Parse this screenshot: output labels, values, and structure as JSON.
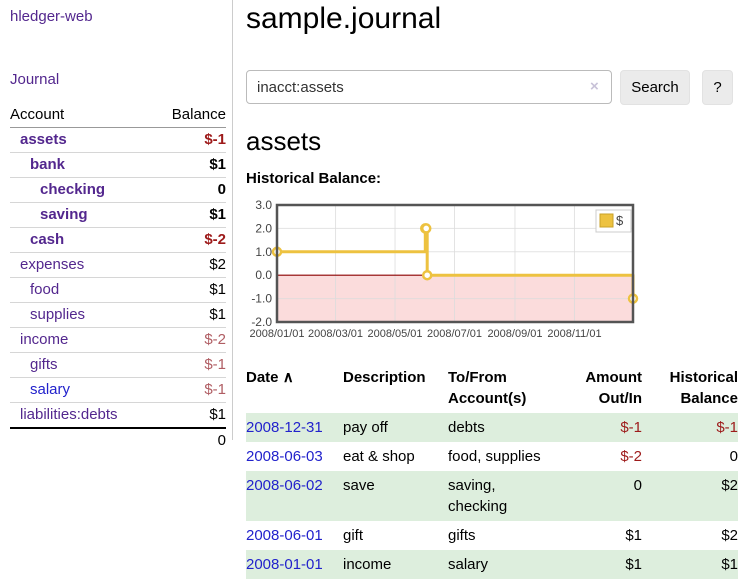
{
  "app": {
    "brand": "hledger-web"
  },
  "sidebar": {
    "nav": {
      "journal_label": "Journal"
    },
    "accounts": {
      "headers": {
        "account": "Account",
        "balance": "Balance"
      },
      "rows": [
        {
          "name": "assets",
          "balance": "$-1",
          "indent": 1,
          "bold": true,
          "neg": true,
          "muted": false,
          "blue": false
        },
        {
          "name": "bank",
          "balance": "$1",
          "indent": 2,
          "bold": true,
          "neg": false,
          "muted": false,
          "blue": false
        },
        {
          "name": "checking",
          "balance": "0",
          "indent": 3,
          "bold": true,
          "neg": false,
          "muted": false,
          "blue": false
        },
        {
          "name": "saving",
          "balance": "$1",
          "indent": 3,
          "bold": true,
          "neg": false,
          "muted": false,
          "blue": false
        },
        {
          "name": "cash",
          "balance": "$-2",
          "indent": 2,
          "bold": true,
          "neg": true,
          "muted": false,
          "blue": false
        },
        {
          "name": "expenses",
          "balance": "$2",
          "indent": 1,
          "bold": false,
          "neg": false,
          "muted": false,
          "blue": false
        },
        {
          "name": "food",
          "balance": "$1",
          "indent": 2,
          "bold": false,
          "neg": false,
          "muted": false,
          "blue": false
        },
        {
          "name": "supplies",
          "balance": "$1",
          "indent": 2,
          "bold": false,
          "neg": false,
          "muted": false,
          "blue": false
        },
        {
          "name": "income",
          "balance": "$-2",
          "indent": 1,
          "bold": false,
          "neg": true,
          "muted": true,
          "blue": false
        },
        {
          "name": "gifts",
          "balance": "$-1",
          "indent": 2,
          "bold": false,
          "neg": true,
          "muted": true,
          "blue": false
        },
        {
          "name": "salary",
          "balance": "$-1",
          "indent": 2,
          "bold": false,
          "neg": true,
          "muted": true,
          "blue": true
        },
        {
          "name": "liabilities:debts",
          "balance": "$1",
          "indent": 1,
          "bold": false,
          "neg": false,
          "muted": false,
          "blue": false
        }
      ],
      "total": "0"
    }
  },
  "header": {
    "title": "sample.journal"
  },
  "search": {
    "value": "inacct:assets",
    "clear_icon": "×",
    "button_label": "Search",
    "help_label": "?"
  },
  "account_page": {
    "title": "assets",
    "chart_label": "Historical Balance:"
  },
  "chart_data": {
    "type": "line",
    "step": true,
    "title": "Historical Balance",
    "series": [
      {
        "name": "$",
        "color": "#edc240",
        "points": [
          {
            "date": "2008-01-01",
            "value": 1
          },
          {
            "date": "2008-06-01",
            "value": 2
          },
          {
            "date": "2008-06-02",
            "value": 2
          },
          {
            "date": "2008-06-03",
            "value": 0
          },
          {
            "date": "2008-12-31",
            "value": -1
          }
        ]
      }
    ],
    "x_range": [
      "2008-01-01",
      "2008-12-31"
    ],
    "x_tick_labels": [
      "2008/01/01",
      "2008/03/01",
      "2008/05/01",
      "2008/07/01",
      "2008/09/01",
      "2008/11/01"
    ],
    "y_ticks": [
      "3.0",
      "2.0",
      "1.0",
      "0.0",
      "-1.0",
      "-2.0"
    ],
    "ylim": [
      -2,
      3
    ],
    "grid": true,
    "legend_position": "top-right",
    "legend_label": "$",
    "negative_region_color": "#fbdcdc",
    "zero_line_color": "#8b0000",
    "border_color": "#545454"
  },
  "register": {
    "headers": {
      "date": "Date",
      "sort_icon": "∧",
      "description": "Description",
      "accounts_line1": "To/From",
      "accounts_line2": "Account(s)",
      "amount_line1": "Amount",
      "amount_line2": "Out/In",
      "balance_line1": "Historical",
      "balance_line2": "Balance"
    },
    "rows": [
      {
        "date": "2008-12-31",
        "description": "pay off",
        "accounts": "debts",
        "amount": "$-1",
        "balance": "$-1",
        "amount_neg": true,
        "balance_neg": true,
        "stripe": true
      },
      {
        "date": "2008-06-03",
        "description": "eat & shop",
        "accounts": "food, supplies",
        "amount": "$-2",
        "balance": "0",
        "amount_neg": true,
        "balance_neg": false,
        "stripe": false
      },
      {
        "date": "2008-06-02",
        "description": "save",
        "accounts": "saving, checking",
        "amount": "0",
        "balance": "$2",
        "amount_neg": false,
        "balance_neg": false,
        "stripe": true
      },
      {
        "date": "2008-06-01",
        "description": "gift",
        "accounts": "gifts",
        "amount": "$1",
        "balance": "$2",
        "amount_neg": false,
        "balance_neg": false,
        "stripe": false
      },
      {
        "date": "2008-01-01",
        "description": "income",
        "accounts": "salary",
        "amount": "$1",
        "balance": "$1",
        "amount_neg": false,
        "balance_neg": false,
        "stripe": true
      }
    ]
  }
}
